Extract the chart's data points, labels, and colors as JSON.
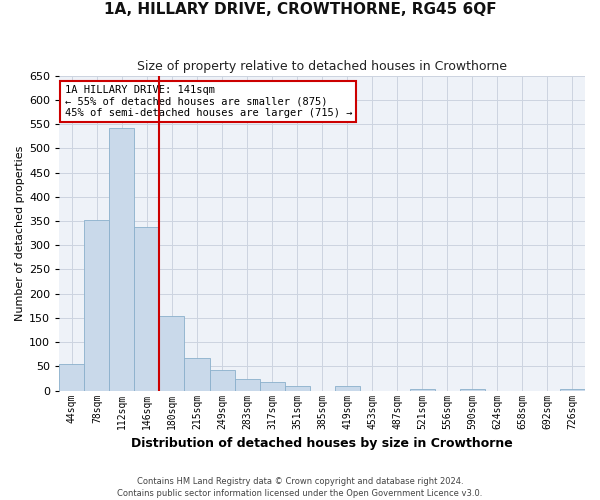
{
  "title": "1A, HILLARY DRIVE, CROWTHORNE, RG45 6QF",
  "subtitle": "Size of property relative to detached houses in Crowthorne",
  "xlabel": "Distribution of detached houses by size in Crowthorne",
  "ylabel": "Number of detached properties",
  "bar_color": "#c9d9ea",
  "bar_edge_color": "#8ab0cc",
  "vline_color": "#cc0000",
  "vline_position": 3.5,
  "annotation_text": "1A HILLARY DRIVE: 141sqm\n← 55% of detached houses are smaller (875)\n45% of semi-detached houses are larger (715) →",
  "categories": [
    "44sqm",
    "78sqm",
    "112sqm",
    "146sqm",
    "180sqm",
    "215sqm",
    "249sqm",
    "283sqm",
    "317sqm",
    "351sqm",
    "385sqm",
    "419sqm",
    "453sqm",
    "487sqm",
    "521sqm",
    "556sqm",
    "590sqm",
    "624sqm",
    "658sqm",
    "692sqm",
    "726sqm"
  ],
  "values": [
    55,
    352,
    541,
    338,
    155,
    68,
    42,
    24,
    18,
    10,
    0,
    10,
    0,
    0,
    4,
    0,
    4,
    0,
    0,
    0,
    4
  ],
  "ylim": [
    0,
    650
  ],
  "yticks": [
    0,
    50,
    100,
    150,
    200,
    250,
    300,
    350,
    400,
    450,
    500,
    550,
    600,
    650
  ],
  "bg_color": "#eef2f8",
  "grid_color": "#ccd4e0",
  "fig_bg_color": "#ffffff",
  "footnote": "Contains HM Land Registry data © Crown copyright and database right 2024.\nContains public sector information licensed under the Open Government Licence v3.0.",
  "annotation_box_facecolor": "#ffffff",
  "annotation_box_edgecolor": "#cc0000",
  "title_fontsize": 11,
  "subtitle_fontsize": 9,
  "ylabel_fontsize": 8,
  "xlabel_fontsize": 9,
  "tick_fontsize": 8,
  "xtick_fontsize": 7
}
